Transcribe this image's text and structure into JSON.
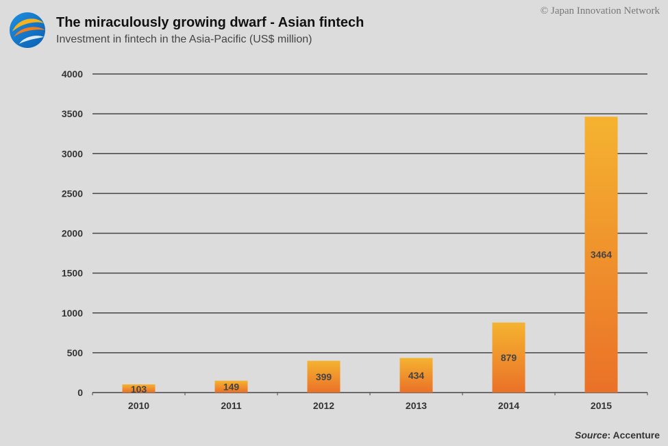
{
  "header": {
    "title": "The miraculously growing dwarf - Asian fintech",
    "subtitle": "Investment in fintech in the Asia-Pacific (US$ million)",
    "copyright": "Japan Innovation Network",
    "copyright_symbol": "©"
  },
  "footer": {
    "source_label": "Source",
    "source_value": ": Accenture"
  },
  "colors": {
    "bar_top": "#f5b330",
    "bar_bottom": "#ea7128",
    "gridline": "#444444",
    "background": "#dcdcdc"
  },
  "chart_data": {
    "type": "bar",
    "title": "The miraculously growing dwarf - Asian fintech",
    "subtitle": "Investment in fintech in the Asia-Pacific (US$ million)",
    "categories": [
      "2010",
      "2011",
      "2012",
      "2013",
      "2014",
      "2015"
    ],
    "values": [
      103,
      149,
      399,
      434,
      879,
      3464
    ],
    "xlabel": "",
    "ylabel": "",
    "ylim": [
      0,
      4000
    ],
    "yticks": [
      0,
      500,
      1000,
      1500,
      2000,
      2500,
      3000,
      3500,
      4000
    ],
    "grid": true,
    "legend": "none"
  }
}
